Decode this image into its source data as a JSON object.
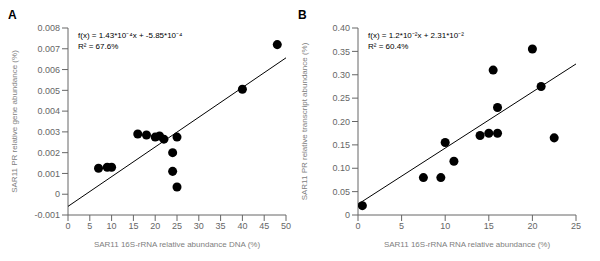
{
  "chart_data": [
    {
      "type": "scatter",
      "title": "A",
      "x_label": "SAR11 16S-rRNA relative abundance DNA (%)",
      "y_label": "SAR11 PR relative gene abundance (%)",
      "annotations": [
        "f(x) = 1.43*10⁻⁴x + -5.85*10⁻⁴",
        "R² = 67.6%"
      ],
      "xlim": [
        0,
        50
      ],
      "ylim": [
        -0.001,
        0.008
      ],
      "xticks": [
        0,
        5,
        10,
        15,
        20,
        25,
        30,
        35,
        40,
        45,
        50
      ],
      "yticks": [
        -0.001,
        0,
        0.001,
        0.002,
        0.003,
        0.004,
        0.005,
        0.006,
        0.007,
        0.008
      ],
      "grid": false,
      "series": [
        {
          "type": "scatter",
          "color": "#000000",
          "x": [
            7,
            9,
            10,
            16,
            18,
            20,
            21,
            22,
            24,
            24,
            25,
            25,
            40,
            48
          ],
          "values": [
            0.00125,
            0.0013,
            0.0013,
            0.0029,
            0.00285,
            0.00275,
            0.0028,
            0.00265,
            0.002,
            0.0011,
            0.00275,
            0.00035,
            0.00505,
            0.0072
          ]
        },
        {
          "type": "line",
          "color": "#000000",
          "x": [
            0,
            50
          ],
          "values": [
            -0.000585,
            0.006565
          ]
        }
      ]
    },
    {
      "type": "scatter",
      "title": "B",
      "x_label": "SAR11 16S-rRNA RNA relative abundance (%)",
      "y_label": "SAR11 PR relative transcript abundance (%)",
      "annotations": [
        "f(x) = 1.2*10⁻²x + 2.31*10⁻²",
        "R² = 60.4%"
      ],
      "xlim": [
        0,
        25
      ],
      "ylim": [
        0,
        0.4
      ],
      "xticks": [
        0,
        5,
        10,
        15,
        20,
        25
      ],
      "yticks": [
        0,
        0.05,
        {
          "value": 0.1,
          "label": "0.10"
        },
        0.15,
        {
          "value": 0.2,
          "label": "0.20"
        },
        0.25,
        {
          "value": 0.3,
          "label": "0.30"
        },
        0.35,
        {
          "value": 0.4,
          "label": "0.40"
        }
      ],
      "grid": false,
      "series": [
        {
          "type": "scatter",
          "color": "#000000",
          "x": [
            0.5,
            7.5,
            9.5,
            10,
            11,
            14,
            15,
            15.5,
            16,
            16,
            20,
            21,
            22.5
          ],
          "values": [
            0.02,
            0.08,
            0.08,
            0.155,
            0.115,
            0.17,
            0.175,
            0.31,
            0.23,
            0.175,
            0.355,
            0.275,
            0.165
          ]
        },
        {
          "type": "line",
          "color": "#000000",
          "x": [
            0,
            25
          ],
          "values": [
            0.0231,
            0.3231
          ]
        }
      ]
    }
  ]
}
